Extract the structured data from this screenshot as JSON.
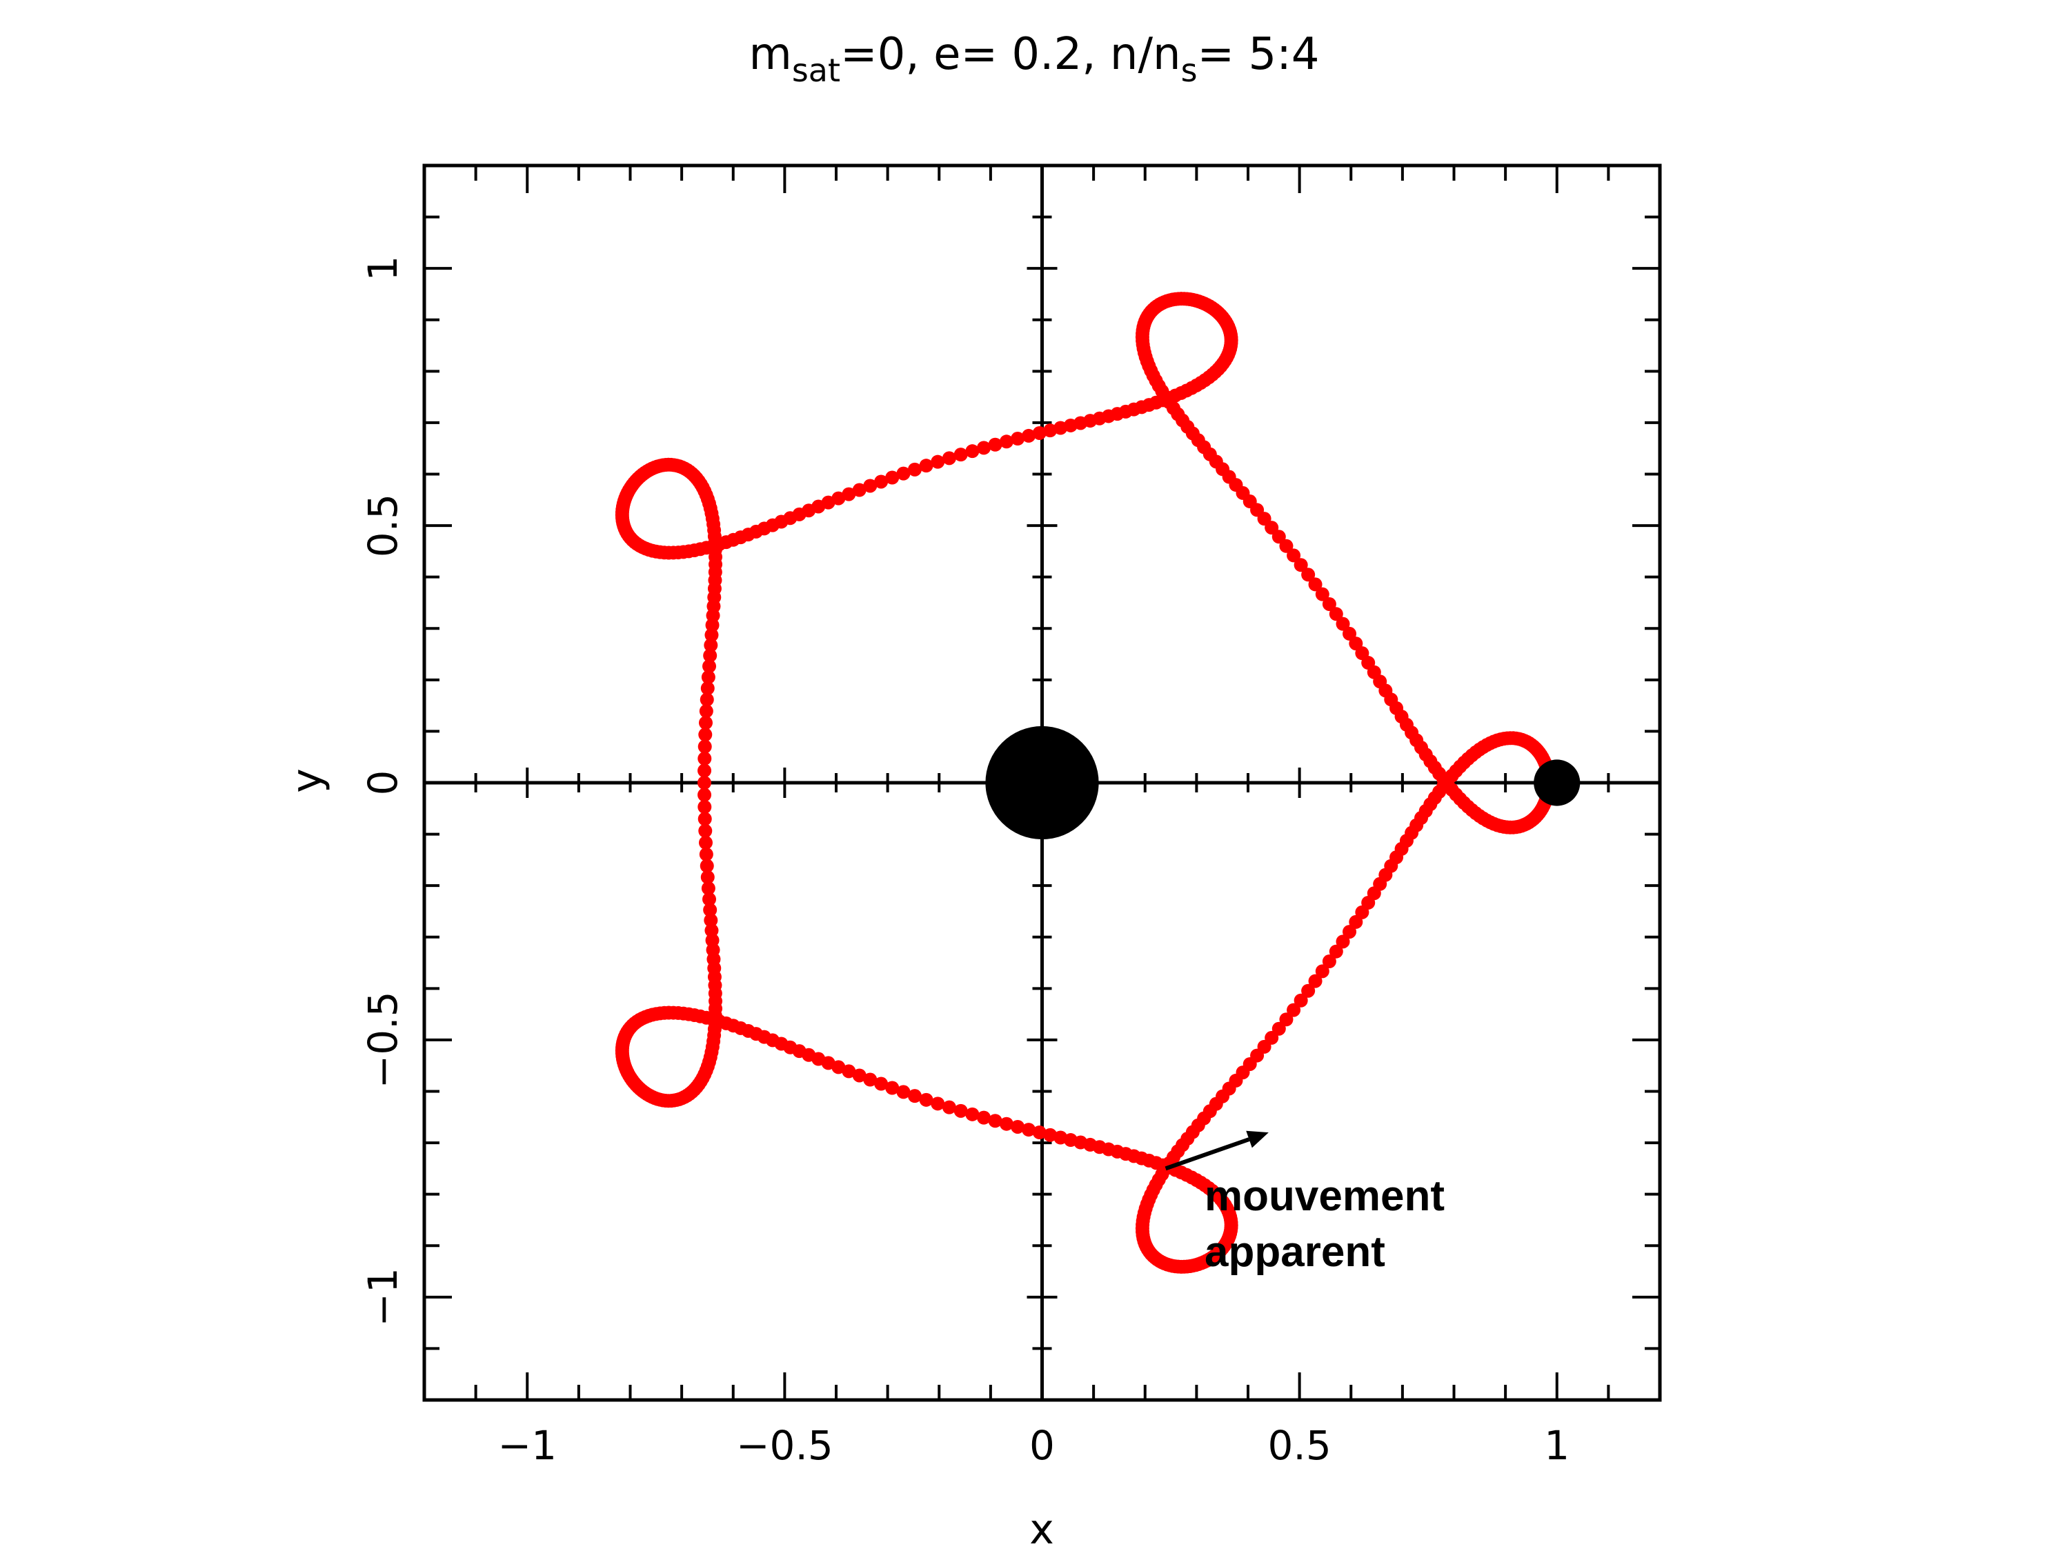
{
  "chart_data": {
    "type": "scatter",
    "title": {
      "m": "m",
      "m_sub": "sat",
      "part1": "=0,  e= 0.2,  n/n",
      "n_sub": "s",
      "part2": "= 5:4"
    },
    "xlabel": "x",
    "ylabel": "y",
    "xlim": [
      -1.2,
      1.2
    ],
    "ylim": [
      -1.2,
      1.2
    ],
    "x_ticks": [
      -1,
      -0.5,
      0,
      0.5,
      1
    ],
    "x_tick_labels": [
      "−1",
      "−0.5",
      "0",
      "0.5",
      "1"
    ],
    "y_ticks": [
      -1,
      -0.5,
      0,
      0.5,
      1
    ],
    "y_tick_labels": [
      "−1",
      "−0.5",
      "0",
      "0.5",
      "1"
    ],
    "grid": false,
    "origin_axes": true,
    "series": [
      {
        "marker": "filled-circle",
        "color": "#ff0000",
        "orbit": {
          "a": 0.82,
          "e": 0.2,
          "n_ratio": [
            5,
            4
          ],
          "loops": 5
        }
      }
    ],
    "bodies": [
      {
        "x": 0,
        "y": 0,
        "radius": 0.11,
        "color": "#000000"
      },
      {
        "x": 1,
        "y": 0,
        "radius": 0.045,
        "color": "#000000"
      }
    ],
    "annotation": {
      "lines": [
        "mouvement",
        "apparent"
      ],
      "arrow_from": [
        0.24,
        -0.75
      ],
      "arrow_to": [
        0.44,
        -0.68
      ]
    }
  },
  "colors": {
    "orbit": "#ff0000",
    "axes": "#000000",
    "background": "#ffffff"
  }
}
